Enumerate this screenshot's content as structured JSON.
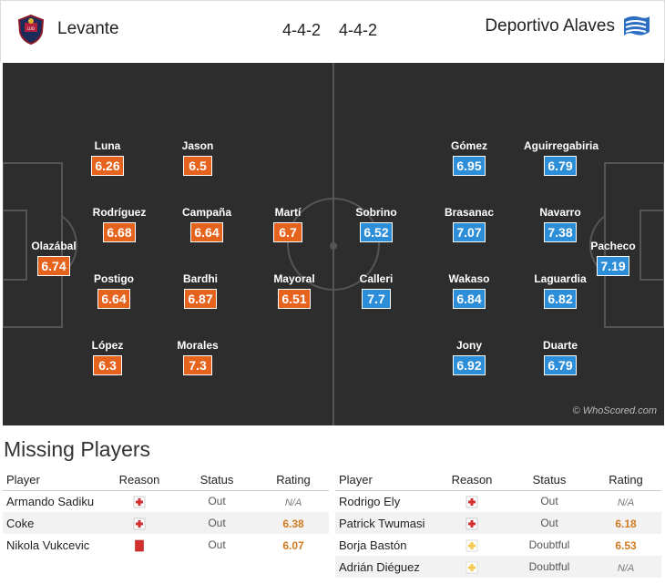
{
  "header": {
    "home_team": "Levante",
    "home_formation": "4-4-2",
    "away_formation": "4-4-2",
    "away_team": "Deportivo Alaves",
    "home_crest_icon": "levante-crest-icon",
    "away_crest_icon": "alaves-crest-icon"
  },
  "colors": {
    "home": "#e6631e",
    "away": "#2c8dd9",
    "pitch": "#2d2d2d"
  },
  "pitch": {
    "credit": "© WhoScored.com",
    "home_players": [
      {
        "name": "Olazábal",
        "rating": "6.74"
      },
      {
        "name": "Luna",
        "rating": "6.26"
      },
      {
        "name": "Rodríguez",
        "rating": "6.68"
      },
      {
        "name": "Postigo",
        "rating": "6.64"
      },
      {
        "name": "López",
        "rating": "6.3"
      },
      {
        "name": "Jason",
        "rating": "6.5"
      },
      {
        "name": "Campaña",
        "rating": "6.64"
      },
      {
        "name": "Bardhi",
        "rating": "6.87"
      },
      {
        "name": "Morales",
        "rating": "7.3"
      },
      {
        "name": "Martí",
        "rating": "6.7"
      },
      {
        "name": "Mayoral",
        "rating": "6.51"
      }
    ],
    "away_players": [
      {
        "name": "Pacheco",
        "rating": "7.19"
      },
      {
        "name": "Aguirregabiria",
        "rating": "6.79"
      },
      {
        "name": "Navarro",
        "rating": "7.38"
      },
      {
        "name": "Laguardia",
        "rating": "6.82"
      },
      {
        "name": "Duarte",
        "rating": "6.79"
      },
      {
        "name": "Gómez",
        "rating": "6.95"
      },
      {
        "name": "Brasanac",
        "rating": "7.07"
      },
      {
        "name": "Wakaso",
        "rating": "6.84"
      },
      {
        "name": "Jony",
        "rating": "6.92"
      },
      {
        "name": "Sobrino",
        "rating": "6.52"
      },
      {
        "name": "Calleri",
        "rating": "7.7"
      }
    ]
  },
  "missing": {
    "title": "Missing Players",
    "columns": [
      "Player",
      "Reason",
      "Status",
      "Rating"
    ],
    "home": [
      {
        "player": "Armando Sadiku",
        "reason_icon": "injury-icon",
        "status": "Out",
        "rating": "N/A"
      },
      {
        "player": "Coke",
        "reason_icon": "injury-icon",
        "status": "Out",
        "rating": "6.38"
      },
      {
        "player": "Nikola Vukcevic",
        "reason_icon": "red-card-icon",
        "status": "Out",
        "rating": "6.07"
      }
    ],
    "away": [
      {
        "player": "Rodrigo Ely",
        "reason_icon": "injury-icon",
        "status": "Out",
        "rating": "N/A"
      },
      {
        "player": "Patrick Twumasi",
        "reason_icon": "injury-icon",
        "status": "Out",
        "rating": "6.18"
      },
      {
        "player": "Borja Bastón",
        "reason_icon": "doubtful-icon",
        "status": "Doubtful",
        "rating": "6.53"
      },
      {
        "player": "Adrián Diéguez",
        "reason_icon": "doubtful-icon",
        "status": "Doubtful",
        "rating": "N/A"
      }
    ]
  }
}
